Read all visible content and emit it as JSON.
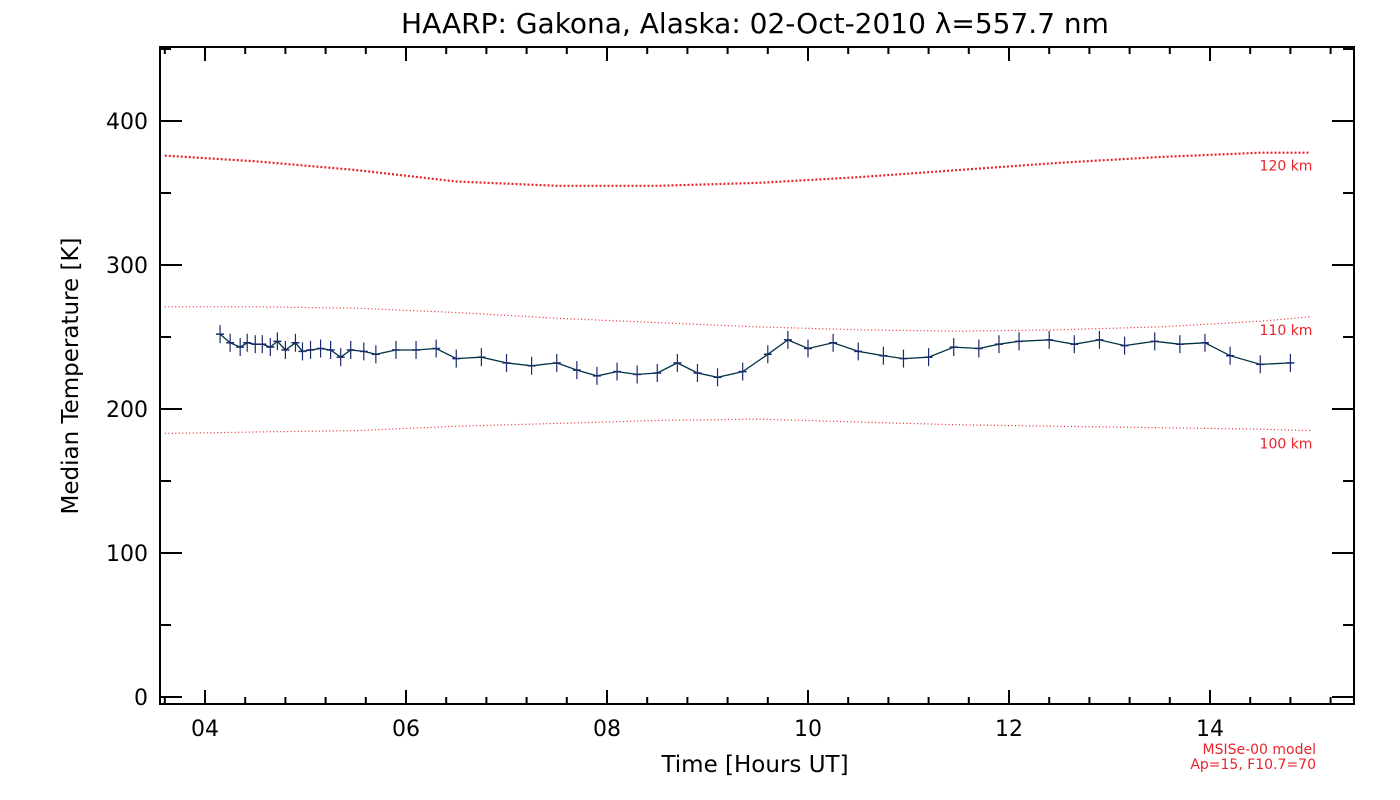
{
  "chart_data": {
    "type": "line",
    "title": "HAARP: Gakona,  Alaska: 02-Oct-2010 λ=557.7 nm",
    "xlabel": "Time [Hours UT]",
    "ylabel": "Median Temperature [K]",
    "xlim": [
      3.6,
      15.4
    ],
    "ylim": [
      0,
      450
    ],
    "xticks": [
      4,
      6,
      8,
      10,
      12,
      14
    ],
    "xtick_labels": [
      "04",
      "06",
      "08",
      "10",
      "12",
      "14"
    ],
    "yticks": [
      0,
      100,
      200,
      300,
      400
    ],
    "ytick_labels": [
      "0",
      "100",
      "200",
      "300",
      "400"
    ],
    "grid": false,
    "colors": {
      "data": "#1a2a6c",
      "line": "#003344",
      "model": "#e8242a"
    },
    "series": [
      {
        "x": [
          4.15,
          4.25,
          4.35,
          4.42,
          4.5,
          4.57,
          4.65,
          4.72,
          4.8,
          4.9,
          4.97,
          5.05,
          5.15,
          5.25,
          5.35,
          5.45,
          5.58,
          5.7,
          5.9,
          6.1,
          6.3,
          6.5,
          6.75,
          7.0,
          7.25,
          7.5,
          7.7,
          7.9,
          8.1,
          8.3,
          8.5,
          8.7,
          8.9,
          9.1,
          9.35,
          9.6,
          9.8,
          10.0,
          10.25,
          10.5,
          10.75,
          10.95,
          11.2,
          11.45,
          11.7,
          11.9,
          12.1,
          12.4,
          12.65,
          12.9,
          13.15,
          13.45,
          13.7,
          13.95,
          14.2,
          14.5,
          14.8
        ],
        "y": [
          252,
          246,
          243,
          246,
          245,
          245,
          243,
          247,
          241,
          246,
          240,
          241,
          242,
          241,
          236,
          241,
          240,
          238,
          241,
          241,
          242,
          235,
          236,
          232,
          230,
          232,
          227,
          223,
          226,
          224,
          225,
          232,
          225,
          222,
          226,
          238,
          248,
          242,
          246,
          240,
          237,
          235,
          236,
          243,
          242,
          245,
          247,
          248,
          245,
          248,
          244,
          247,
          245,
          246,
          237,
          231,
          232
        ]
      }
    ],
    "model_curves": [
      {
        "label": "120 km",
        "x": [
          3.6,
          4.5,
          5.5,
          6.5,
          7.5,
          8.5,
          9.5,
          10.5,
          11.5,
          12.5,
          13.5,
          14.5,
          15.0
        ],
        "y": [
          376,
          372,
          366,
          358,
          355,
          355,
          357,
          361,
          366,
          371,
          375,
          378,
          378
        ]
      },
      {
        "label": "110 km",
        "x": [
          3.6,
          4.5,
          5.5,
          6.5,
          7.5,
          8.5,
          9.5,
          10.5,
          11.5,
          12.5,
          13.5,
          14.5,
          15.0
        ],
        "y": [
          271,
          271,
          270,
          267,
          263,
          260,
          257,
          255,
          254,
          255,
          257,
          261,
          264
        ]
      },
      {
        "label": "100 km",
        "x": [
          3.6,
          4.5,
          5.5,
          6.5,
          7.5,
          8.5,
          9.5,
          10.5,
          11.5,
          12.5,
          13.5,
          14.5,
          15.0
        ],
        "y": [
          183,
          184,
          185,
          188,
          190,
          192,
          193,
          191,
          189,
          188,
          187,
          186,
          185
        ]
      }
    ],
    "annotations": [
      "MSISe-00 model",
      "Ap=15, F10.7=70"
    ]
  }
}
